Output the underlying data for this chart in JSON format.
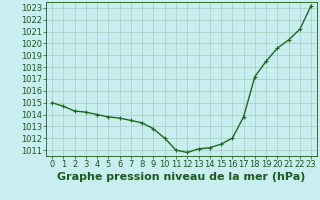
{
  "x": [
    0,
    1,
    2,
    3,
    4,
    5,
    6,
    7,
    8,
    9,
    10,
    11,
    12,
    13,
    14,
    15,
    16,
    17,
    18,
    19,
    20,
    21,
    22,
    23
  ],
  "y": [
    1015.0,
    1014.7,
    1014.3,
    1014.2,
    1014.0,
    1013.8,
    1013.7,
    1013.5,
    1013.3,
    1012.8,
    1012.0,
    1011.0,
    1010.8,
    1011.1,
    1011.2,
    1011.5,
    1012.0,
    1013.8,
    1017.2,
    1018.5,
    1019.6,
    1020.3,
    1021.2,
    1023.2
  ],
  "line_color": "#1a6b1a",
  "marker_color": "#1a6b1a",
  "bg_color": "#c8eef0",
  "grid_color": "#a0cfc0",
  "title": "Graphe pression niveau de la mer (hPa)",
  "ylim": [
    1010.5,
    1023.5
  ],
  "xlim": [
    -0.5,
    23.5
  ],
  "yticks": [
    1011,
    1012,
    1013,
    1014,
    1015,
    1016,
    1017,
    1018,
    1019,
    1020,
    1021,
    1022,
    1023
  ],
  "xticks": [
    0,
    1,
    2,
    3,
    4,
    5,
    6,
    7,
    8,
    9,
    10,
    11,
    12,
    13,
    14,
    15,
    16,
    17,
    18,
    19,
    20,
    21,
    22,
    23
  ],
  "title_fontsize": 8,
  "tick_fontsize": 6,
  "title_color": "#1a5c1a",
  "tick_color": "#1a5c1a",
  "line_width": 1.0,
  "marker_size": 3.5,
  "marker_edge_width": 0.8
}
